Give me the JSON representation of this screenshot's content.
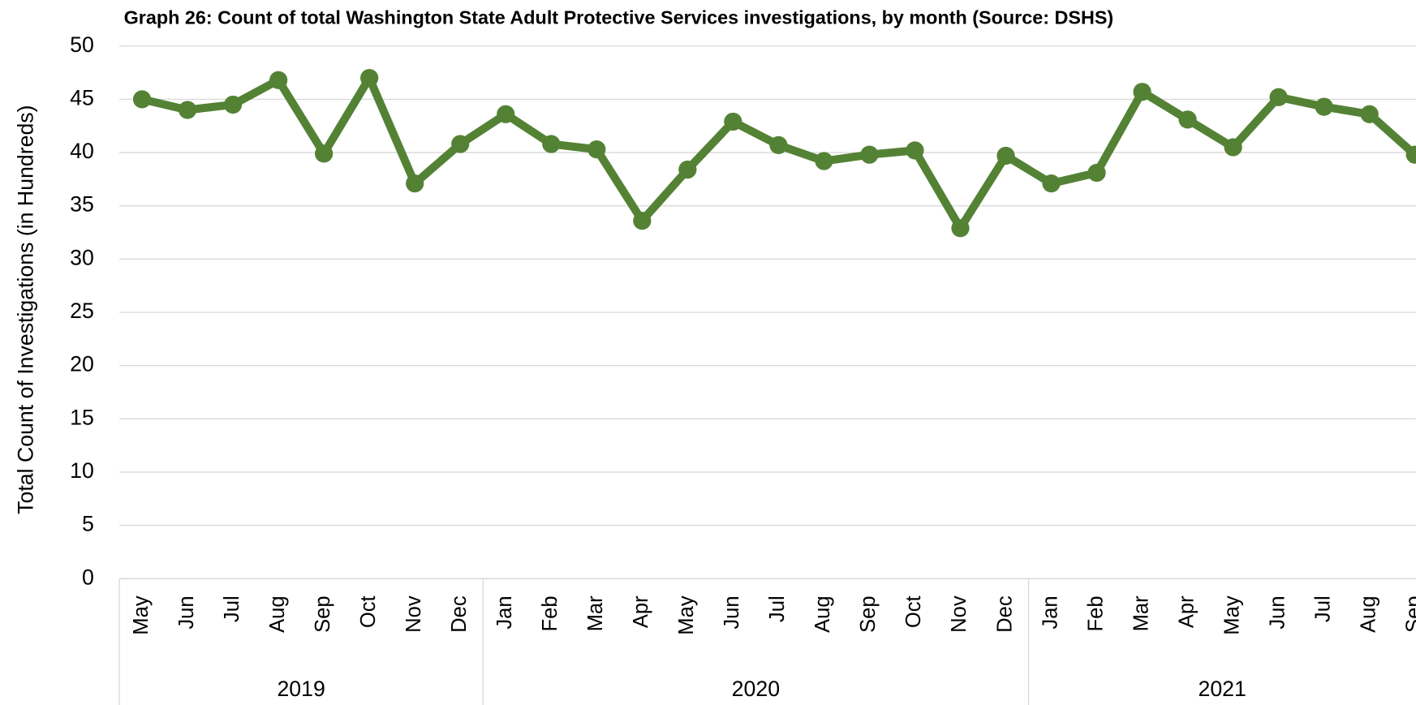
{
  "chart_data": {
    "type": "line",
    "title": "Graph 26: Count of total Washington State Adult Protective Services investigations, by month (Source: DSHS)",
    "y_label": "Total Count of  Investigations (in Hundreds)",
    "category_groups": [
      {
        "label": "2019",
        "categories": [
          "May",
          "Jun",
          "Jul",
          "Aug",
          "Sep",
          "Oct",
          "Nov",
          "Dec"
        ]
      },
      {
        "label": "2020",
        "categories": [
          "Jan",
          "Feb",
          "Mar",
          "Apr",
          "May",
          "Jun",
          "Jul",
          "Aug",
          "Sep",
          "Oct",
          "Nov",
          "Dec"
        ]
      },
      {
        "label": "2021",
        "categories": [
          "Jan",
          "Feb",
          "Mar",
          "Apr",
          "May",
          "Jun",
          "Jul",
          "Aug",
          "Sep"
        ]
      }
    ],
    "values": [
      45.0,
      44.0,
      44.5,
      46.8,
      39.9,
      47.0,
      37.1,
      40.8,
      43.6,
      40.8,
      40.3,
      33.6,
      38.4,
      42.9,
      40.7,
      39.2,
      39.8,
      40.2,
      32.9,
      39.7,
      37.1,
      38.1,
      45.7,
      43.1,
      40.5,
      45.2,
      44.3,
      43.6,
      39.8
    ],
    "color": "#548235",
    "ylim": [
      0,
      50
    ],
    "yticks": [
      0,
      5,
      10,
      15,
      20,
      25,
      30,
      35,
      40,
      45,
      50
    ],
    "grid": true
  }
}
